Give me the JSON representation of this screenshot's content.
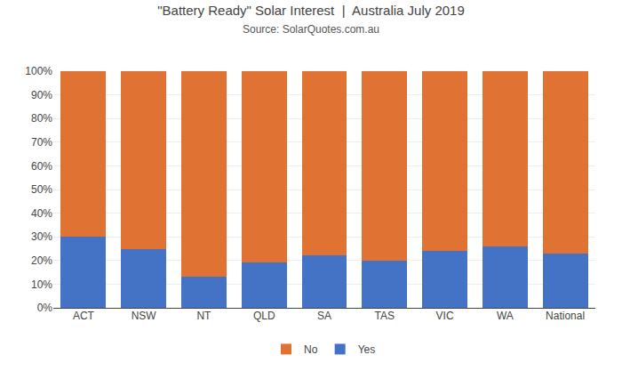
{
  "chart_data": {
    "type": "bar",
    "title": "\"Battery Ready\" Solar Interest  |  Australia July 2019",
    "subtitle": "Source: SolarQuotes.com.au",
    "categories": [
      "ACT",
      "NSW",
      "NT",
      "QLD",
      "SA",
      "TAS",
      "VIC",
      "WA",
      "National"
    ],
    "series": [
      {
        "name": "Yes",
        "color": "#4472C4",
        "values": [
          30,
          25,
          13,
          19,
          22,
          20,
          24,
          26,
          23
        ]
      },
      {
        "name": "No",
        "color": "#E07333",
        "values": [
          70,
          75,
          87,
          81,
          78,
          80,
          76,
          74,
          77
        ]
      }
    ],
    "stacked": true,
    "ylim": [
      0,
      100
    ],
    "yticks": [
      {
        "value": 0,
        "label": "0%"
      },
      {
        "value": 10,
        "label": "10%"
      },
      {
        "value": 20,
        "label": "20%"
      },
      {
        "value": 30,
        "label": "30%"
      },
      {
        "value": 40,
        "label": "40%"
      },
      {
        "value": 50,
        "label": "50%"
      },
      {
        "value": 60,
        "label": "60%"
      },
      {
        "value": 70,
        "label": "70%"
      },
      {
        "value": 80,
        "label": "80%"
      },
      {
        "value": 90,
        "label": "90%"
      },
      {
        "value": 100,
        "label": "100%"
      }
    ],
    "grid": true,
    "legend": "bottom"
  }
}
